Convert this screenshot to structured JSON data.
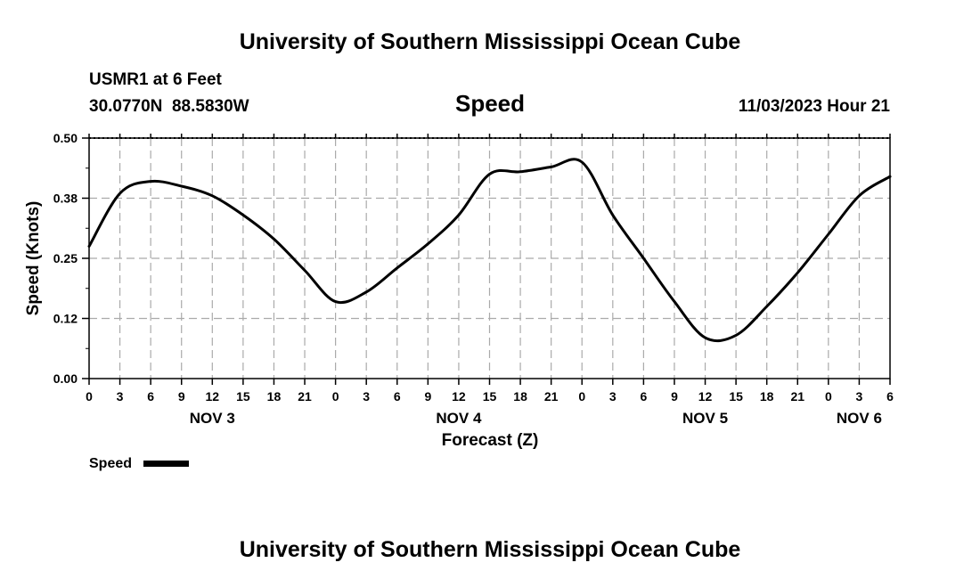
{
  "header": {
    "title": "University of Southern Mississippi Ocean Cube",
    "station": "USMR1 at 6 Feet",
    "coords": "30.0770N  88.5830W",
    "variable": "Speed",
    "datetime": "11/03/2023 Hour 21",
    "footer_title": "University of Southern Mississippi Ocean Cube"
  },
  "legend": {
    "label": "Speed"
  },
  "colors": {
    "line": "#000000",
    "grid": "#aaaaaa",
    "background": "#ffffff"
  },
  "chart_data": {
    "type": "line",
    "title": "Speed",
    "xlabel": "Forecast (Z)",
    "ylabel": "Speed (Knots)",
    "ylim": [
      0,
      0.5
    ],
    "xlim": [
      0,
      78
    ],
    "yticks": [
      0.0,
      0.125,
      0.25,
      0.375,
      0.5
    ],
    "ytick_labels": [
      "0.00",
      "0.12",
      "0.25",
      "0.38",
      "0.50"
    ],
    "xticks": [
      0,
      3,
      6,
      9,
      12,
      15,
      18,
      21,
      24,
      27,
      30,
      33,
      36,
      39,
      42,
      45,
      48,
      51,
      54,
      57,
      60,
      63,
      66,
      69,
      72,
      75,
      78
    ],
    "xtick_labels": [
      "0",
      "3",
      "6",
      "9",
      "12",
      "15",
      "18",
      "21",
      "0",
      "3",
      "6",
      "9",
      "12",
      "15",
      "18",
      "21",
      "0",
      "3",
      "6",
      "9",
      "12",
      "15",
      "18",
      "21",
      "0",
      "3",
      "6"
    ],
    "day_labels": [
      {
        "label": "NOV 3",
        "x": 12
      },
      {
        "label": "NOV 4",
        "x": 36
      },
      {
        "label": "NOV 5",
        "x": 60
      },
      {
        "label": "NOV 6",
        "x": 75
      }
    ],
    "grid": true,
    "series": [
      {
        "name": "Speed",
        "x": [
          0,
          3,
          6,
          9,
          12,
          15,
          18,
          21,
          24,
          27,
          30,
          33,
          36,
          39,
          42,
          45,
          48,
          51,
          54,
          57,
          60,
          63,
          66,
          69,
          72,
          75,
          78
        ],
        "values": [
          0.275,
          0.385,
          0.41,
          0.4,
          0.38,
          0.34,
          0.29,
          0.225,
          0.16,
          0.18,
          0.23,
          0.28,
          0.34,
          0.425,
          0.43,
          0.44,
          0.45,
          0.34,
          0.25,
          0.16,
          0.085,
          0.09,
          0.15,
          0.22,
          0.3,
          0.38,
          0.42
        ]
      }
    ]
  }
}
